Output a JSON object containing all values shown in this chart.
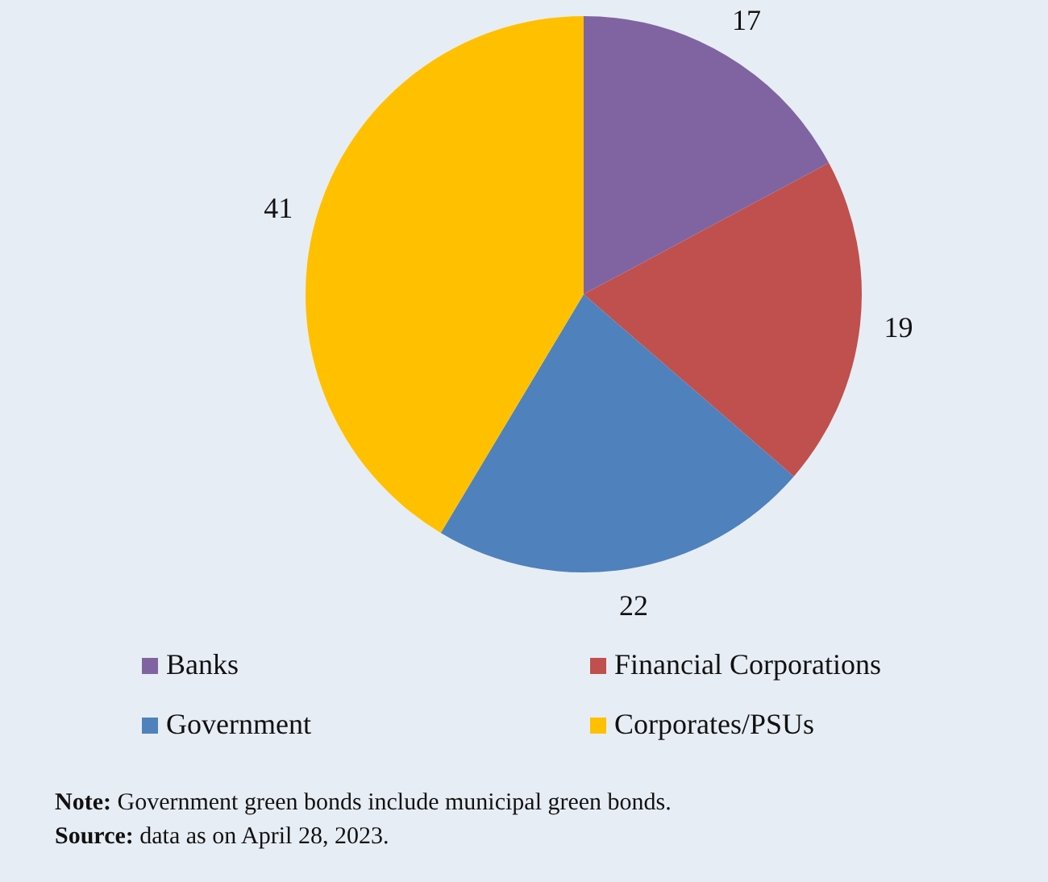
{
  "chart_data": {
    "type": "pie",
    "categories": [
      "Banks",
      "Financial Corporations",
      "Government",
      "Corporates/PSUs"
    ],
    "values": [
      17,
      19,
      22,
      41
    ],
    "colors": [
      "#8064a2",
      "#c0504d",
      "#4f81bd",
      "#ffc000"
    ],
    "data_labels": true,
    "legend": "bottom",
    "annotations": [
      "Note: Government green bonds include municipal green bonds.",
      "Source: data as on April 28, 2023."
    ]
  }
}
